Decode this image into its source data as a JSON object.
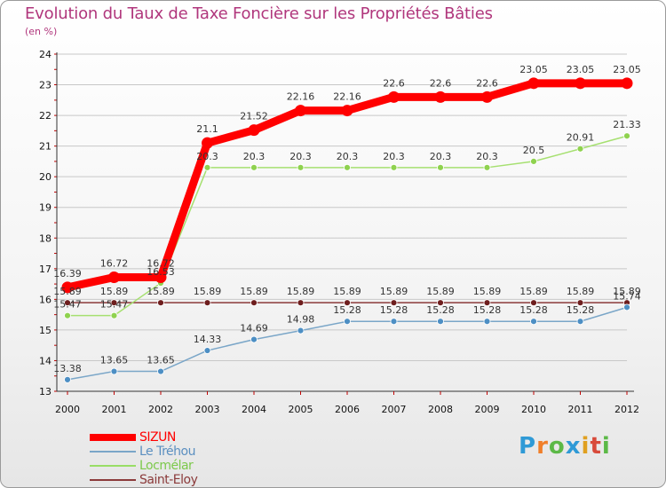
{
  "title": "Evolution du Taux de Taxe Foncière sur les Propriétés Bâties",
  "unit": "(en %)",
  "logo": {
    "p": "P",
    "r": "r",
    "o": "o",
    "x": "x",
    "i": "i",
    "t": "t",
    "i2": "i"
  },
  "colors": {
    "title": "#b0367c",
    "axis": "#c00000",
    "grid": "#c8c8c8"
  },
  "chart_data": {
    "type": "line",
    "title": "Evolution du Taux de Taxe Foncière sur les Propriétés Bâties",
    "ylabel": "(en %)",
    "xlabel": "",
    "ylim": [
      13,
      24
    ],
    "grid": "horizontal",
    "categories": [
      "2000",
      "2001",
      "2002",
      "2003",
      "2004",
      "2005",
      "2006",
      "2007",
      "2008",
      "2009",
      "2010",
      "2011",
      "2012"
    ],
    "yticks": [
      "13",
      "14",
      "15",
      "16",
      "17",
      "18",
      "19",
      "20",
      "21",
      "22",
      "23",
      "24"
    ],
    "series": [
      {
        "name": "SIZUN",
        "color": "#ff0000",
        "values": [
          16.39,
          16.72,
          16.72,
          21.1,
          21.52,
          22.16,
          22.16,
          22.6,
          22.6,
          22.6,
          23.05,
          23.05,
          23.05
        ],
        "labels": [
          "16.39",
          "16.72",
          "16.72",
          "21.1",
          "21.52",
          "22.16",
          "22.16",
          "22.6",
          "22.6",
          "22.6",
          "23.05",
          "23.05",
          "23.05"
        ]
      },
      {
        "name": "Le Tréhou",
        "color": "#7aa6c8",
        "values": [
          13.38,
          13.65,
          13.65,
          14.33,
          14.69,
          14.98,
          15.28,
          15.28,
          15.28,
          15.28,
          15.28,
          15.28,
          15.74
        ],
        "labels": [
          "13.38",
          "13.65",
          "13.65",
          "14.33",
          "14.69",
          "14.98",
          "15.28",
          "15.28",
          "15.28",
          "15.28",
          "15.28",
          "15.28",
          "15.74"
        ]
      },
      {
        "name": "Locmélar",
        "color": "#99dd66",
        "values": [
          15.47,
          15.47,
          16.53,
          20.3,
          20.3,
          20.3,
          20.3,
          20.3,
          20.3,
          20.3,
          20.5,
          20.91,
          21.33
        ],
        "labels": [
          "15.47",
          "15.47",
          "16.53",
          "20.3",
          "20.3",
          "20.3",
          "20.3",
          "20.3",
          "20.3",
          "20.3",
          "20.5",
          "20.91",
          "21.33"
        ]
      },
      {
        "name": "Saint-Eloy",
        "color": "#8b3a3a",
        "values": [
          15.89,
          15.89,
          15.89,
          15.89,
          15.89,
          15.89,
          15.89,
          15.89,
          15.89,
          15.89,
          15.89,
          15.89,
          15.89
        ],
        "labels": [
          "15.89",
          "15.89",
          "15.89",
          "15.89",
          "15.89",
          "15.89",
          "15.89",
          "15.89",
          "15.89",
          "15.89",
          "15.89",
          "15.89",
          "15.89"
        ]
      }
    ]
  }
}
